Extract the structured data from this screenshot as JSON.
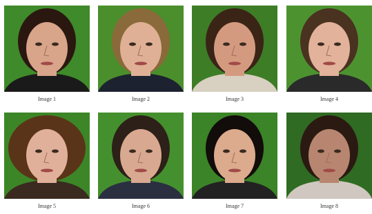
{
  "figure": {
    "images": [
      {
        "caption": "Image 1"
      },
      {
        "caption": "Image 2"
      },
      {
        "caption": "Image 3"
      },
      {
        "caption": "Image 4"
      },
      {
        "caption": "Image 5"
      },
      {
        "caption": "Image 6"
      },
      {
        "caption": "Image 7"
      },
      {
        "caption": "Image 8"
      }
    ]
  }
}
